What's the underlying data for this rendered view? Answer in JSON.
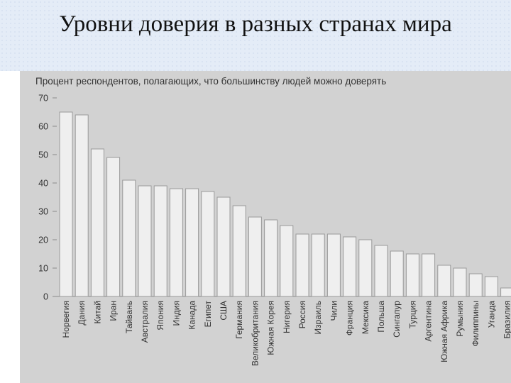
{
  "slide": {
    "title": "Уровни доверия в разных странах мира"
  },
  "chart_data": {
    "type": "bar",
    "subtitle": "Процент респондентов, полагающих, что большинству людей можно доверять",
    "categories": [
      "Норвегия",
      "Дания",
      "Китай",
      "Иран",
      "Тайвань",
      "Австралия",
      "Япония",
      "Индия",
      "Канада",
      "Египет",
      "США",
      "Германия",
      "Великобритания",
      "Южная Корея",
      "Нигерия",
      "Россия",
      "Израиль",
      "Чили",
      "Франция",
      "Мексика",
      "Польша",
      "Сингапур",
      "Турция",
      "Аргентина",
      "Южная Африка",
      "Румыния",
      "Филиппины",
      "Уганда",
      "Бразилия"
    ],
    "values": [
      65,
      64,
      52,
      49,
      41,
      39,
      39,
      38,
      38,
      37,
      35,
      32,
      28,
      27,
      25,
      22,
      22,
      22,
      21,
      20,
      18,
      16,
      15,
      15,
      11,
      10,
      8,
      7,
      3
    ],
    "yticks": [
      0,
      10,
      20,
      30,
      40,
      50,
      60,
      70
    ],
    "ylim": [
      0,
      70
    ],
    "grid": false,
    "colors": {
      "bar": "#efefef",
      "bar_edge": "#9a9a9a",
      "panel": "#d2d2d2",
      "text": "#333333"
    }
  }
}
